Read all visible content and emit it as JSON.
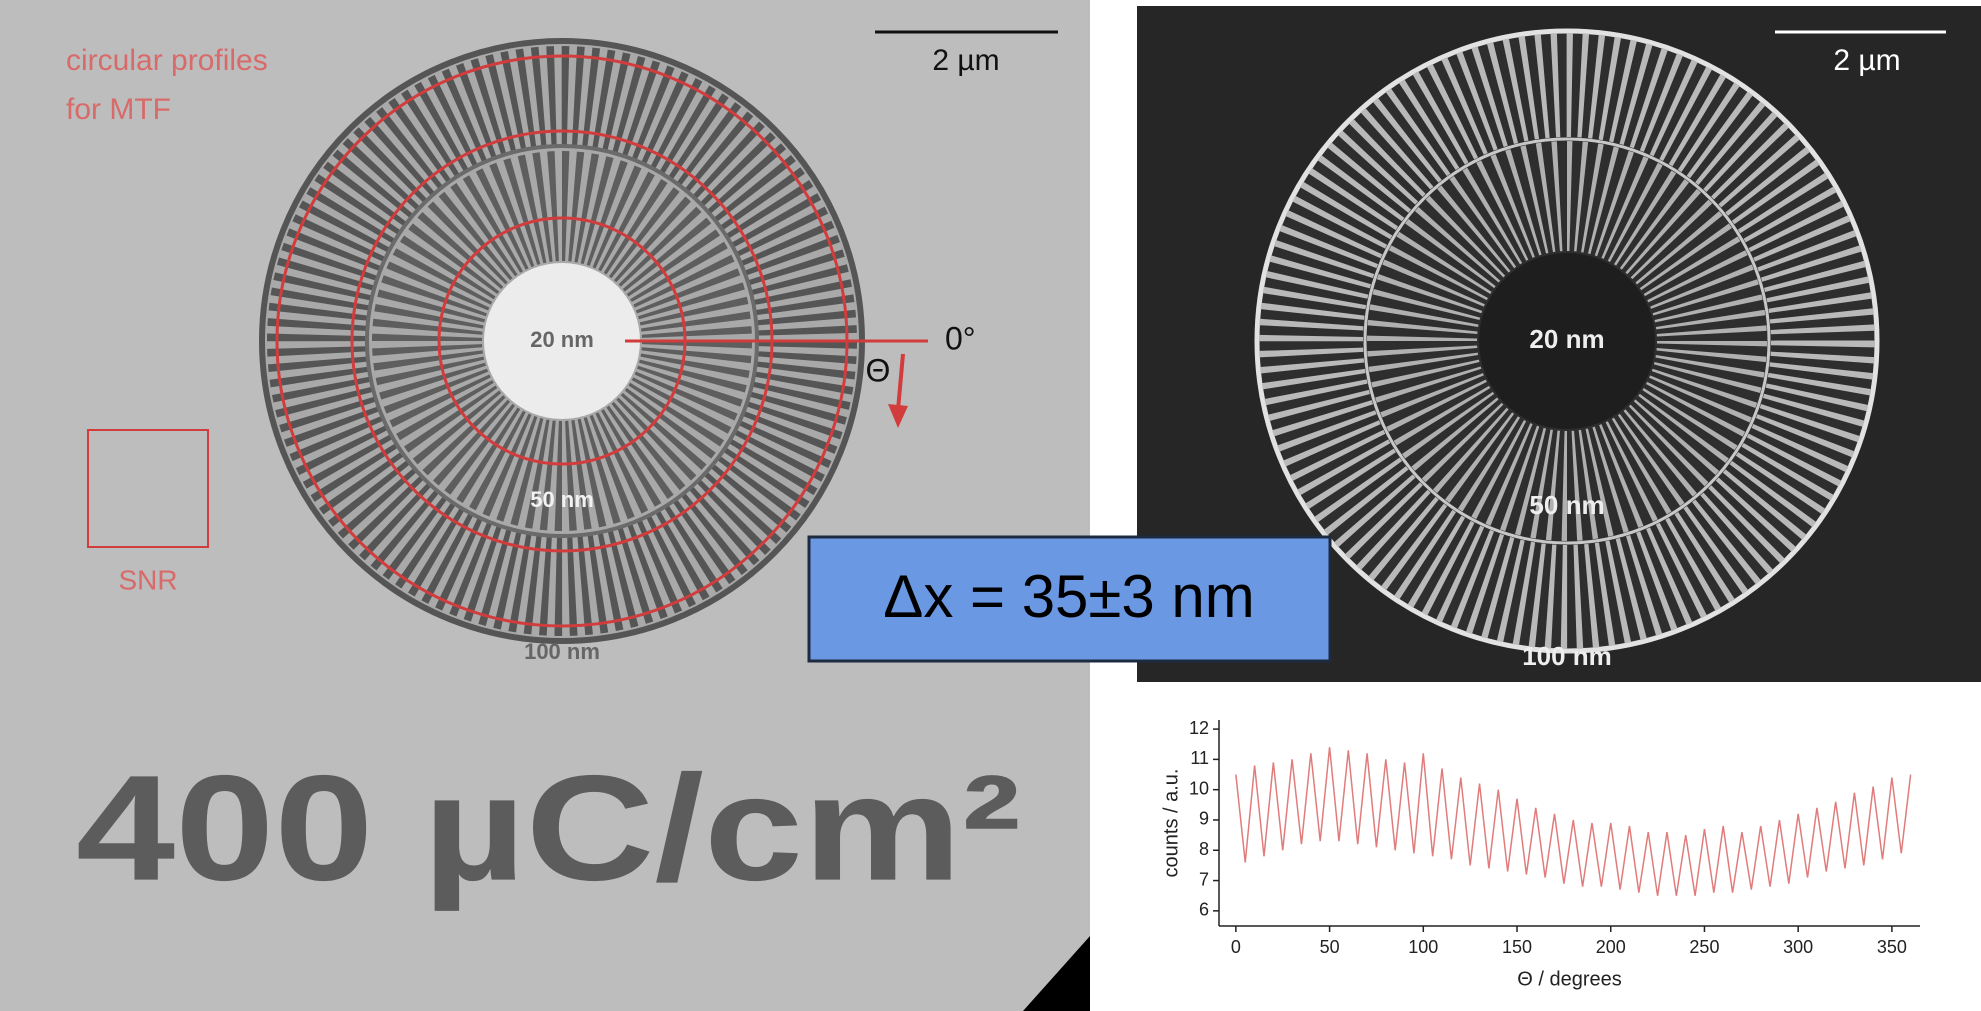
{
  "left_image": {
    "profile_label": [
      "circular profiles",
      "for MTF"
    ],
    "scale_bar": "2 µm",
    "ring_labels": [
      "20 nm",
      "50 nm",
      "100 nm"
    ],
    "angle_label": "0°",
    "angle_symbol": "Θ",
    "snr_label": "SNR",
    "dose_label": "400 µC/cm²"
  },
  "right_image": {
    "scale_bar": "2 µm",
    "ring_labels": [
      "20 nm",
      "50 nm",
      "100 nm"
    ]
  },
  "result_box": "Δx = 35±3 nm",
  "chart_data": {
    "type": "line",
    "x_label": "Θ / degrees",
    "y_label": "counts / a.u.",
    "color": "#e07c7c",
    "x": [
      0,
      5,
      10,
      15,
      20,
      25,
      30,
      35,
      40,
      45,
      50,
      55,
      60,
      65,
      70,
      75,
      80,
      85,
      90,
      95,
      100,
      105,
      110,
      115,
      120,
      125,
      130,
      135,
      140,
      145,
      150,
      155,
      160,
      165,
      170,
      175,
      180,
      185,
      190,
      195,
      200,
      205,
      210,
      215,
      220,
      225,
      230,
      235,
      240,
      245,
      250,
      255,
      260,
      265,
      270,
      275,
      280,
      285,
      290,
      295,
      300,
      305,
      310,
      315,
      320,
      325,
      330,
      335,
      340,
      345,
      350,
      355,
      360
    ],
    "values": [
      10.5,
      7.6,
      10.8,
      7.8,
      10.9,
      8.0,
      11.0,
      8.2,
      11.2,
      8.3,
      11.4,
      8.3,
      11.3,
      8.2,
      11.2,
      8.1,
      11.0,
      8.0,
      10.9,
      7.9,
      11.2,
      7.8,
      10.7,
      7.7,
      10.4,
      7.5,
      10.2,
      7.4,
      10.0,
      7.3,
      9.7,
      7.2,
      9.4,
      7.1,
      9.2,
      6.9,
      9.0,
      6.8,
      8.9,
      6.8,
      8.9,
      6.7,
      8.8,
      6.6,
      8.6,
      6.5,
      8.6,
      6.5,
      8.5,
      6.5,
      8.7,
      6.6,
      8.8,
      6.6,
      8.6,
      6.7,
      8.8,
      6.8,
      9.0,
      6.9,
      9.2,
      7.1,
      9.4,
      7.3,
      9.6,
      7.4,
      9.9,
      7.5,
      10.1,
      7.7,
      10.4,
      7.9,
      10.5
    ],
    "xlim": [
      -9,
      365
    ],
    "ylim": [
      5.5,
      12.3
    ],
    "xticks": [
      0,
      50,
      100,
      150,
      200,
      250,
      300,
      350
    ],
    "yticks": [
      6,
      7,
      8,
      9,
      10,
      11,
      12
    ]
  }
}
